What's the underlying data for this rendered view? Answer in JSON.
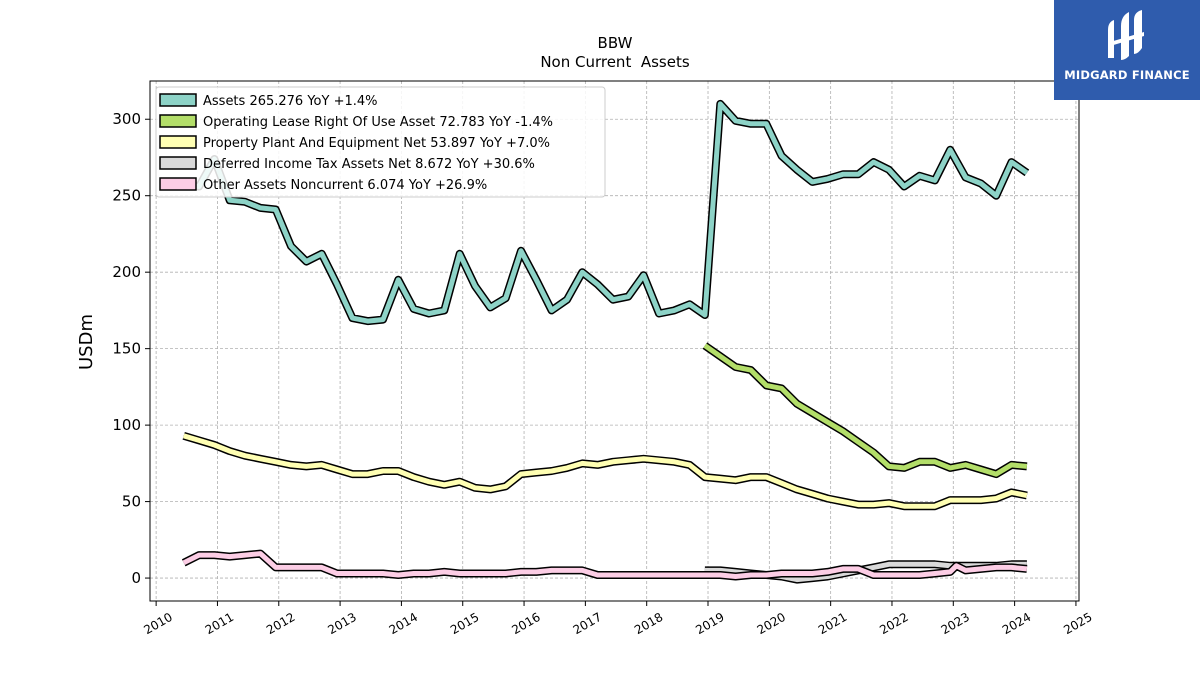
{
  "brand": {
    "name": "MIDGARD FINANCE",
    "bg_color": "#2f5cad"
  },
  "chart_data": {
    "type": "line",
    "title": "BBW",
    "subtitle": "Non Current  Assets",
    "ylabel": "USDm",
    "xlim": [
      2009.9,
      2025.05
    ],
    "ylim": [
      -15,
      325
    ],
    "x_ticks": [
      2010,
      2011,
      2012,
      2013,
      2014,
      2015,
      2016,
      2017,
      2018,
      2019,
      2020,
      2021,
      2022,
      2023,
      2024,
      2025
    ],
    "y_ticks": [
      0,
      50,
      100,
      150,
      200,
      250,
      300
    ],
    "grid": true,
    "legend_position": "top-left",
    "series": [
      {
        "name": "Assets  265.276 YoY +1.4%",
        "color": "#8dd3c7",
        "points": [
          [
            2010.45,
            257
          ],
          [
            2010.7,
            256
          ],
          [
            2010.95,
            274
          ],
          [
            2011.2,
            247
          ],
          [
            2011.45,
            246
          ],
          [
            2011.7,
            242
          ],
          [
            2011.95,
            241
          ],
          [
            2012.2,
            217
          ],
          [
            2012.45,
            207
          ],
          [
            2012.7,
            212
          ],
          [
            2012.95,
            192
          ],
          [
            2013.2,
            170
          ],
          [
            2013.45,
            168
          ],
          [
            2013.7,
            169
          ],
          [
            2013.95,
            195
          ],
          [
            2014.2,
            176
          ],
          [
            2014.45,
            173
          ],
          [
            2014.7,
            175
          ],
          [
            2014.95,
            212
          ],
          [
            2015.2,
            191
          ],
          [
            2015.45,
            177
          ],
          [
            2015.7,
            183
          ],
          [
            2015.95,
            214
          ],
          [
            2016.2,
            195
          ],
          [
            2016.45,
            175
          ],
          [
            2016.7,
            182
          ],
          [
            2016.95,
            200
          ],
          [
            2017.2,
            192
          ],
          [
            2017.45,
            182
          ],
          [
            2017.7,
            184
          ],
          [
            2017.95,
            198
          ],
          [
            2018.2,
            173
          ],
          [
            2018.45,
            175
          ],
          [
            2018.7,
            179
          ],
          [
            2018.95,
            172
          ],
          [
            2019.2,
            310
          ],
          [
            2019.45,
            299
          ],
          [
            2019.7,
            297
          ],
          [
            2019.95,
            297
          ],
          [
            2020.2,
            276
          ],
          [
            2020.45,
            267
          ],
          [
            2020.7,
            259
          ],
          [
            2020.95,
            261
          ],
          [
            2021.2,
            264
          ],
          [
            2021.45,
            264
          ],
          [
            2021.7,
            272
          ],
          [
            2021.95,
            267
          ],
          [
            2022.2,
            256
          ],
          [
            2022.45,
            263
          ],
          [
            2022.7,
            260
          ],
          [
            2022.95,
            280
          ],
          [
            2023.2,
            262
          ],
          [
            2023.45,
            258
          ],
          [
            2023.7,
            250
          ],
          [
            2023.95,
            272
          ],
          [
            2024.2,
            265
          ]
        ]
      },
      {
        "name": "Operating Lease Right Of Use Asset  72.783 YoY -1.4%",
        "color": "#b3de69",
        "points": [
          [
            2018.95,
            152
          ],
          [
            2019.2,
            145
          ],
          [
            2019.45,
            138
          ],
          [
            2019.7,
            136
          ],
          [
            2019.95,
            126
          ],
          [
            2020.2,
            124
          ],
          [
            2020.45,
            114
          ],
          [
            2020.7,
            108
          ],
          [
            2020.95,
            102
          ],
          [
            2021.2,
            96
          ],
          [
            2021.45,
            89
          ],
          [
            2021.7,
            82
          ],
          [
            2021.95,
            73
          ],
          [
            2022.2,
            72
          ],
          [
            2022.45,
            76
          ],
          [
            2022.7,
            76
          ],
          [
            2022.95,
            72
          ],
          [
            2023.2,
            74
          ],
          [
            2023.45,
            71
          ],
          [
            2023.7,
            68
          ],
          [
            2023.95,
            74
          ],
          [
            2024.2,
            73
          ]
        ]
      },
      {
        "name": "Property Plant And Equipment Net  53.897 YoY +7.0%",
        "color": "#ffffb3",
        "points": [
          [
            2010.45,
            93
          ],
          [
            2010.7,
            90
          ],
          [
            2010.95,
            87
          ],
          [
            2011.2,
            83
          ],
          [
            2011.45,
            80
          ],
          [
            2011.7,
            78
          ],
          [
            2011.95,
            76
          ],
          [
            2012.2,
            74
          ],
          [
            2012.45,
            73
          ],
          [
            2012.7,
            74
          ],
          [
            2012.95,
            71
          ],
          [
            2013.2,
            68
          ],
          [
            2013.45,
            68
          ],
          [
            2013.7,
            70
          ],
          [
            2013.95,
            70
          ],
          [
            2014.2,
            66
          ],
          [
            2014.45,
            63
          ],
          [
            2014.7,
            61
          ],
          [
            2014.95,
            63
          ],
          [
            2015.2,
            59
          ],
          [
            2015.45,
            58
          ],
          [
            2015.7,
            60
          ],
          [
            2015.95,
            68
          ],
          [
            2016.2,
            69
          ],
          [
            2016.45,
            70
          ],
          [
            2016.7,
            72
          ],
          [
            2016.95,
            75
          ],
          [
            2017.2,
            74
          ],
          [
            2017.45,
            76
          ],
          [
            2017.7,
            77
          ],
          [
            2017.95,
            78
          ],
          [
            2018.2,
            77
          ],
          [
            2018.45,
            76
          ],
          [
            2018.7,
            74
          ],
          [
            2018.95,
            66
          ],
          [
            2019.2,
            65
          ],
          [
            2019.45,
            64
          ],
          [
            2019.7,
            66
          ],
          [
            2019.95,
            66
          ],
          [
            2020.2,
            62
          ],
          [
            2020.45,
            58
          ],
          [
            2020.7,
            55
          ],
          [
            2020.95,
            52
          ],
          [
            2021.2,
            50
          ],
          [
            2021.45,
            48
          ],
          [
            2021.7,
            48
          ],
          [
            2021.95,
            49
          ],
          [
            2022.2,
            47
          ],
          [
            2022.45,
            47
          ],
          [
            2022.7,
            47
          ],
          [
            2022.95,
            51
          ],
          [
            2023.2,
            51
          ],
          [
            2023.45,
            51
          ],
          [
            2023.7,
            52
          ],
          [
            2023.95,
            56
          ],
          [
            2024.2,
            54
          ]
        ]
      },
      {
        "name": "Deferred Income Tax Assets Net  8.672 YoY +30.6%",
        "color": "#d9d9d9",
        "points": [
          [
            2018.95,
            5
          ],
          [
            2019.2,
            5
          ],
          [
            2019.45,
            4
          ],
          [
            2019.7,
            3
          ],
          [
            2019.95,
            2
          ],
          [
            2020.2,
            1
          ],
          [
            2020.45,
            -1
          ],
          [
            2020.7,
            0
          ],
          [
            2020.95,
            1
          ],
          [
            2021.2,
            3
          ],
          [
            2021.45,
            5
          ],
          [
            2021.7,
            7
          ],
          [
            2021.95,
            9
          ],
          [
            2022.2,
            9
          ],
          [
            2022.45,
            9
          ],
          [
            2022.7,
            9
          ],
          [
            2022.95,
            8
          ],
          [
            2023.2,
            8
          ],
          [
            2023.45,
            8
          ],
          [
            2023.7,
            8
          ],
          [
            2023.95,
            9
          ],
          [
            2024.2,
            9
          ]
        ]
      },
      {
        "name": "Other Assets Noncurrent  6.074 YoY +26.9%",
        "color": "#fccde5",
        "points": [
          [
            2010.45,
            10
          ],
          [
            2010.7,
            15
          ],
          [
            2010.95,
            15
          ],
          [
            2011.2,
            14
          ],
          [
            2011.45,
            15
          ],
          [
            2011.7,
            16
          ],
          [
            2011.95,
            7
          ],
          [
            2012.2,
            7
          ],
          [
            2012.45,
            7
          ],
          [
            2012.7,
            7
          ],
          [
            2012.95,
            3
          ],
          [
            2013.2,
            3
          ],
          [
            2013.45,
            3
          ],
          [
            2013.7,
            3
          ],
          [
            2013.95,
            2
          ],
          [
            2014.2,
            3
          ],
          [
            2014.45,
            3
          ],
          [
            2014.7,
            4
          ],
          [
            2014.95,
            3
          ],
          [
            2015.2,
            3
          ],
          [
            2015.45,
            3
          ],
          [
            2015.7,
            3
          ],
          [
            2015.95,
            4
          ],
          [
            2016.2,
            4
          ],
          [
            2016.45,
            5
          ],
          [
            2016.7,
            5
          ],
          [
            2016.95,
            5
          ],
          [
            2017.2,
            2
          ],
          [
            2017.45,
            2
          ],
          [
            2017.7,
            2
          ],
          [
            2017.95,
            2
          ],
          [
            2018.2,
            2
          ],
          [
            2018.45,
            2
          ],
          [
            2018.7,
            2
          ],
          [
            2018.95,
            2
          ],
          [
            2019.2,
            2
          ],
          [
            2019.45,
            1
          ],
          [
            2019.7,
            2
          ],
          [
            2019.95,
            2
          ],
          [
            2020.2,
            3
          ],
          [
            2020.45,
            3
          ],
          [
            2020.7,
            3
          ],
          [
            2020.95,
            4
          ],
          [
            2021.2,
            6
          ],
          [
            2021.45,
            6
          ],
          [
            2021.7,
            2
          ],
          [
            2021.95,
            2
          ],
          [
            2022.2,
            2
          ],
          [
            2022.45,
            2
          ],
          [
            2022.7,
            3
          ],
          [
            2022.95,
            4
          ],
          [
            2023.05,
            8
          ],
          [
            2023.2,
            5
          ],
          [
            2023.45,
            6
          ],
          [
            2023.7,
            7
          ],
          [
            2023.95,
            7
          ],
          [
            2024.2,
            6
          ]
        ]
      }
    ]
  }
}
